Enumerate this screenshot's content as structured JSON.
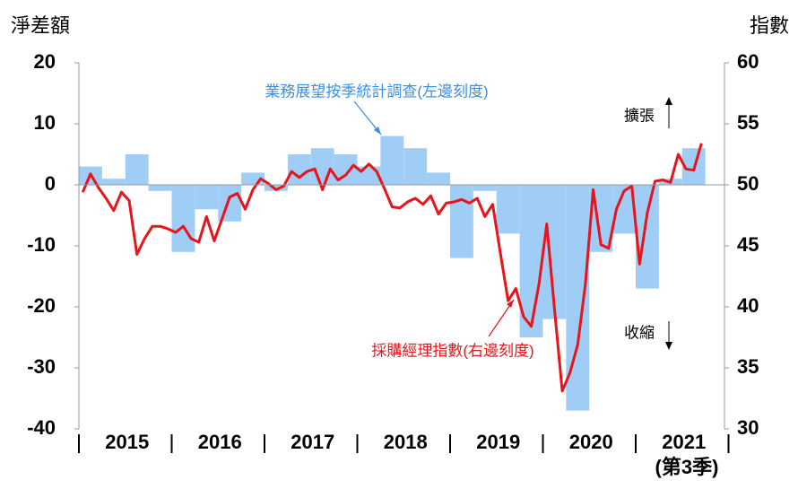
{
  "chart_data": {
    "type": "bar-line",
    "y_label": "淨差額",
    "y2_label": "指數",
    "x_labels": [
      "2015",
      "2016",
      "2017",
      "2018",
      "2019",
      "2020",
      "2021"
    ],
    "x_note": "(第3季)",
    "ylim": [
      -40,
      20
    ],
    "yticks": [
      -40,
      -30,
      -20,
      -10,
      0,
      10,
      20
    ],
    "y2lim": [
      30,
      60
    ],
    "y2ticks": [
      30,
      35,
      40,
      45,
      50,
      55,
      60
    ],
    "series": [
      {
        "name": "業務展望按季統計調查(左邊刻度)",
        "type": "bar",
        "color": "#9fcdf5",
        "label_color": "#3d8fe0",
        "values": [
          3,
          1,
          5,
          -1,
          -11,
          -4,
          -6,
          2,
          -1,
          5,
          6,
          5,
          3,
          8,
          6,
          2,
          -12,
          -1,
          -8,
          -25,
          -22,
          -37,
          -11,
          -8,
          -17,
          1,
          6
        ]
      },
      {
        "name": "採購經理指數(右邊刻度)",
        "type": "line",
        "axis": "y2",
        "color": "#e8141b",
        "values": [
          49.4,
          50.9,
          49.8,
          48.9,
          47.9,
          49.4,
          48.7,
          44.3,
          45.6,
          46.6,
          46.6,
          46.4,
          46.1,
          46.6,
          45.6,
          45.3,
          47.4,
          45.4,
          47.2,
          49.0,
          49.3,
          48.0,
          49.6,
          50.5,
          50.1,
          49.6,
          49.9,
          51.1,
          50.6,
          51.1,
          51.3,
          49.6,
          51.3,
          50.4,
          50.8,
          51.6,
          51.1,
          51.7,
          51.1,
          49.7,
          48.2,
          48.1,
          48.6,
          48.9,
          48.4,
          49.1,
          47.6,
          48.5,
          48.6,
          48.8,
          48.5,
          48.9,
          47.4,
          48.4,
          44.4,
          40.5,
          41.5,
          39.2,
          38.4,
          41.9,
          46.8,
          39.8,
          33.1,
          34.6,
          36.9,
          41.9,
          49.6,
          45.1,
          44.8,
          48.0,
          49.5,
          49.9,
          43.5,
          47.7,
          50.3,
          50.4,
          50.2,
          52.5,
          51.3,
          51.2,
          53.4
        ]
      }
    ],
    "annotations": {
      "up": "擴張",
      "down": "收縮"
    }
  }
}
